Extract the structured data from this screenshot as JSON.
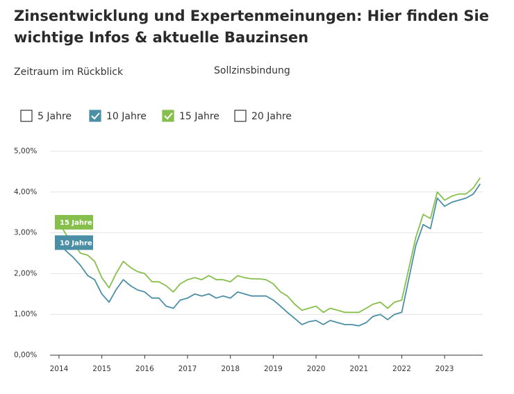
{
  "chart_data": {
    "type": "line",
    "title_lines": [
      "Zinsentwicklung und Expertenmeinungen: Hier finden Sie",
      "wichtige Infos & aktuelle Bauzinsen"
    ],
    "x": [
      2014,
      2014.17,
      2014.33,
      2014.5,
      2014.67,
      2014.83,
      2015,
      2015.17,
      2015.33,
      2015.5,
      2015.67,
      2015.83,
      2016,
      2016.17,
      2016.33,
      2016.5,
      2016.67,
      2016.83,
      2017,
      2017.17,
      2017.33,
      2017.5,
      2017.67,
      2017.83,
      2018,
      2018.17,
      2018.33,
      2018.5,
      2018.67,
      2018.83,
      2019,
      2019.17,
      2019.33,
      2019.5,
      2019.67,
      2019.83,
      2020,
      2020.17,
      2020.33,
      2020.5,
      2020.67,
      2020.83,
      2021,
      2021.17,
      2021.33,
      2021.5,
      2021.67,
      2021.83,
      2022,
      2022.17,
      2022.33,
      2022.5,
      2022.67,
      2022.83,
      2023,
      2023.17,
      2023.33,
      2023.5,
      2023.67,
      2023.83
    ],
    "series": [
      {
        "name": "10 Jahre",
        "color": "#4b8fa6",
        "values": [
          2.75,
          2.55,
          2.4,
          2.2,
          1.95,
          1.85,
          1.5,
          1.3,
          1.6,
          1.85,
          1.7,
          1.6,
          1.55,
          1.4,
          1.4,
          1.2,
          1.15,
          1.35,
          1.4,
          1.5,
          1.45,
          1.5,
          1.4,
          1.45,
          1.4,
          1.55,
          1.5,
          1.45,
          1.45,
          1.45,
          1.35,
          1.2,
          1.05,
          0.9,
          0.75,
          0.82,
          0.85,
          0.75,
          0.85,
          0.8,
          0.75,
          0.75,
          0.72,
          0.8,
          0.95,
          1.0,
          0.87,
          1.0,
          1.05,
          1.9,
          2.7,
          3.2,
          3.1,
          3.85,
          3.65,
          3.75,
          3.8,
          3.85,
          3.95,
          4.2
        ]
      },
      {
        "name": "15 Jahre",
        "color": "#86bf4c",
        "values": [
          3.25,
          2.95,
          2.75,
          2.5,
          2.45,
          2.3,
          1.9,
          1.65,
          2.0,
          2.3,
          2.15,
          2.05,
          2.0,
          1.8,
          1.8,
          1.7,
          1.55,
          1.75,
          1.85,
          1.9,
          1.85,
          1.95,
          1.85,
          1.85,
          1.8,
          1.95,
          1.9,
          1.87,
          1.87,
          1.85,
          1.75,
          1.55,
          1.45,
          1.25,
          1.1,
          1.15,
          1.2,
          1.05,
          1.15,
          1.1,
          1.05,
          1.05,
          1.05,
          1.15,
          1.25,
          1.3,
          1.15,
          1.3,
          1.35,
          2.15,
          2.9,
          3.45,
          3.35,
          4.0,
          3.8,
          3.9,
          3.95,
          3.95,
          4.1,
          4.35
        ]
      }
    ],
    "xlim": [
      2013.79,
      2023.89
    ],
    "xticks": [
      2014,
      2015,
      2016,
      2017,
      2018,
      2019,
      2020,
      2021,
      2022,
      2023
    ],
    "ylim": [
      0,
      5
    ],
    "yticks": [
      {
        "value": 0,
        "label": "0,00%"
      },
      {
        "value": 1,
        "label": "1,00%"
      },
      {
        "value": 2,
        "label": "2,00%"
      },
      {
        "value": 3,
        "label": "3,00%"
      },
      {
        "value": 4,
        "label": "4,00%"
      },
      {
        "value": 5,
        "label": "5,00%"
      }
    ],
    "grid": true
  },
  "filters": {
    "period_label": "Zeitraum im Rückblick",
    "binding_label": "Sollzinsbindung",
    "options": [
      {
        "label": "5 Jahre",
        "checked": false
      },
      {
        "label": "10 Jahre",
        "checked": true,
        "color": "#4b8fa6"
      },
      {
        "label": "15 Jahre",
        "checked": true,
        "color": "#86bf4c"
      },
      {
        "label": "20 Jahre",
        "checked": false
      }
    ]
  }
}
